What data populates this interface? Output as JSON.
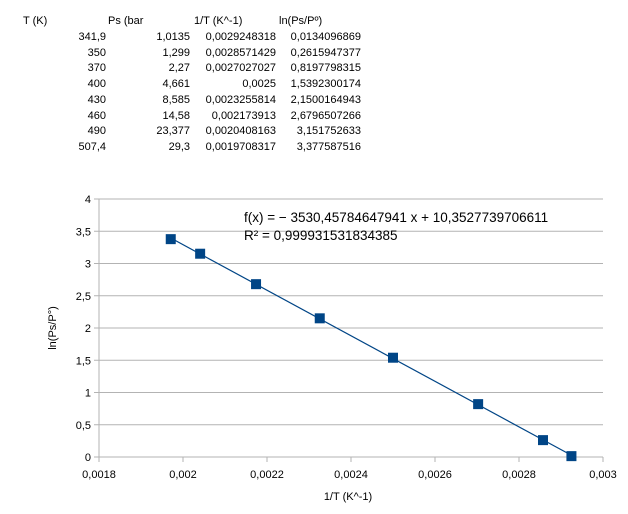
{
  "table": {
    "headers": [
      "T  (K)",
      "Ps (bar",
      "1/T  (K^-1)",
      "ln(Ps/Pº)"
    ],
    "rows": [
      [
        "341,9",
        "1,0135",
        "0,0029248318",
        "0,0134096869"
      ],
      [
        "350",
        "1,299",
        "0,0028571429",
        "0,2615947377"
      ],
      [
        "370",
        "2,27",
        "0,0027027027",
        "0,8197798315"
      ],
      [
        "400",
        "4,661",
        "0,0025",
        "1,5392300174"
      ],
      [
        "430",
        "8,585",
        "0,0023255814",
        "2,1500164943"
      ],
      [
        "460",
        "14,58",
        "0,002173913",
        "2,6796507266"
      ],
      [
        "490",
        "23,377",
        "0,0020408163",
        "3,151752633"
      ],
      [
        "507,4",
        "29,3",
        "0,0019708317",
        "3,377587516"
      ]
    ]
  },
  "chart_data": {
    "type": "scatter",
    "xlabel": "1/T (K^-1)",
    "ylabel": "ln(Ps/P°)",
    "xlim": [
      0.0018,
      0.003
    ],
    "ylim": [
      0,
      4
    ],
    "x_ticks": [
      0.0018,
      0.002,
      0.0022,
      0.0024,
      0.0026,
      0.0028,
      0.003
    ],
    "x_tick_labels": [
      "0,0018",
      "0,002",
      "0,0022",
      "0,0024",
      "0,0026",
      "0,0028",
      "0,003"
    ],
    "y_ticks": [
      0,
      0.5,
      1,
      1.5,
      2,
      2.5,
      3,
      3.5,
      4
    ],
    "y_tick_labels": [
      "0",
      "0,5",
      "1",
      "1,5",
      "2",
      "2,5",
      "3",
      "3,5",
      "4"
    ],
    "grid": "horizontal",
    "series": [
      {
        "color": "#004586",
        "marker": "square",
        "x": [
          0.0029248318,
          0.0028571429,
          0.0027027027,
          0.0025,
          0.0023255814,
          0.002173913,
          0.0020408163,
          0.0019708317
        ],
        "y": [
          0.0134096869,
          0.2615947377,
          0.8197798315,
          1.5392300174,
          2.1500164943,
          2.6796507266,
          3.151752633,
          3.377587516
        ]
      }
    ],
    "trendline": {
      "slope": -3530.45784647941,
      "intercept": 10.3527739706611,
      "color": "#004586"
    },
    "annotations": {
      "equation": "f(x) = − 3530,45784647941 x + 10,3527739706611",
      "r_squared": "R² = 0,999931531834385"
    }
  }
}
